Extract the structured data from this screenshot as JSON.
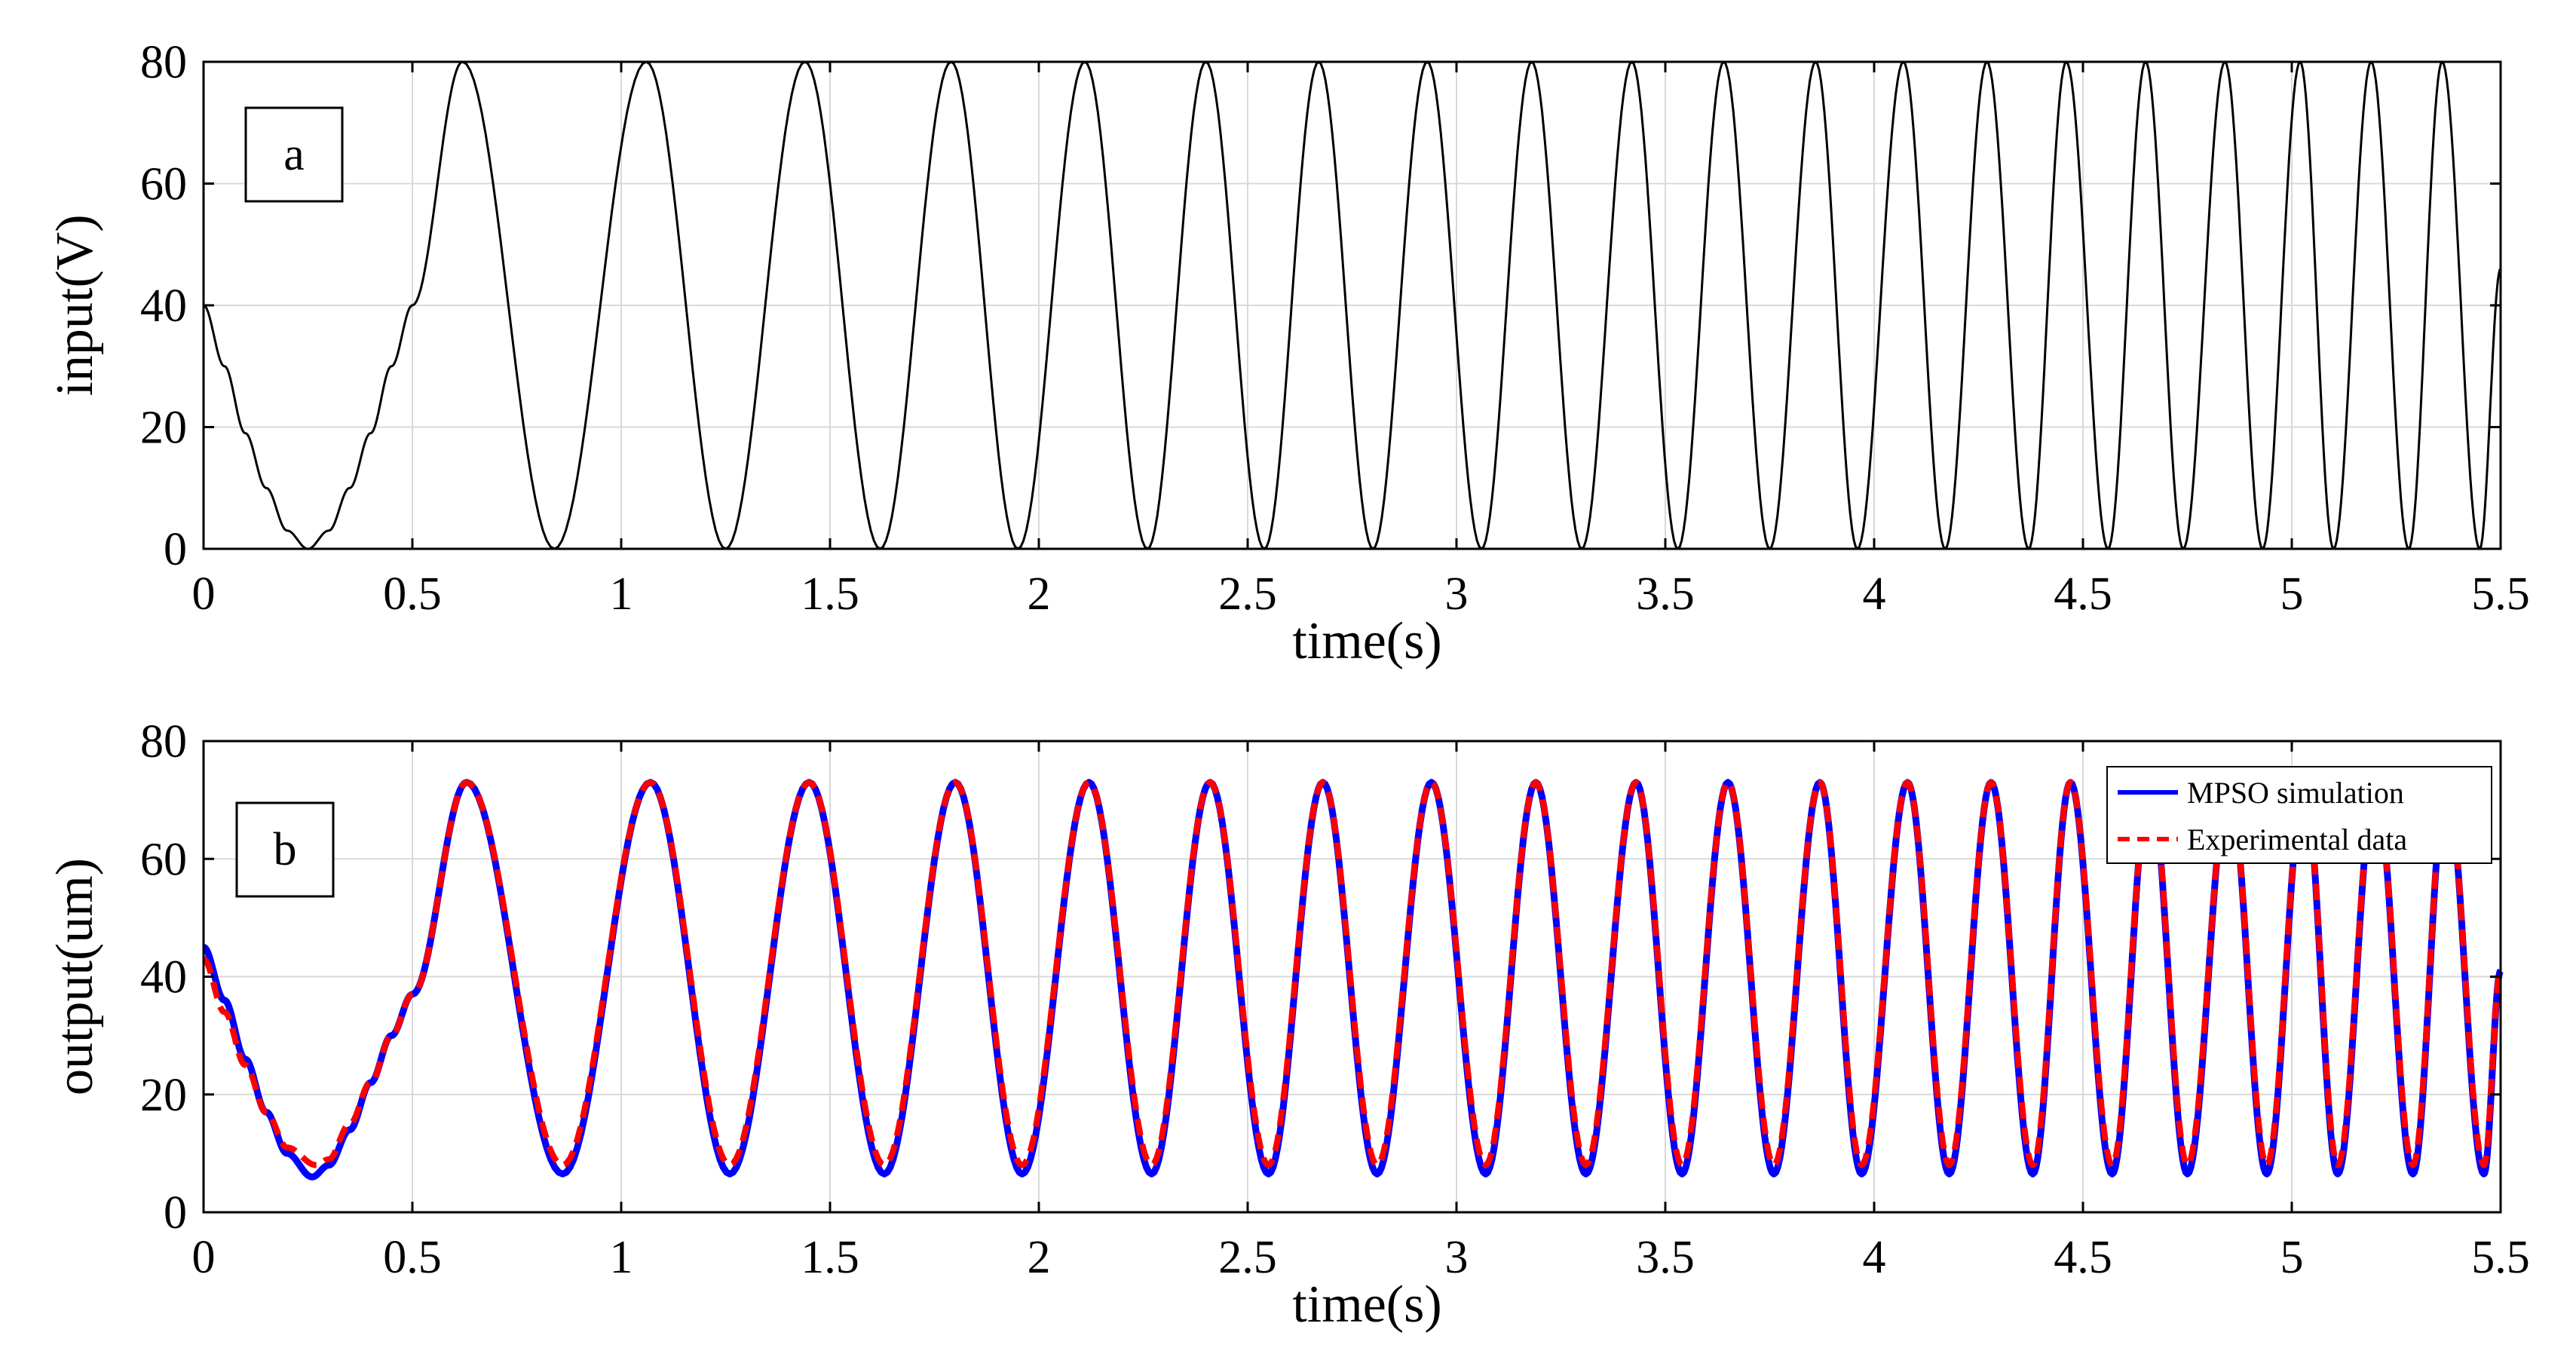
{
  "colors": {
    "input_line": "#000000",
    "simulation": "#0000ff",
    "experimental": "#ff0000",
    "grid": "#d9d9d9",
    "axes": "#000000"
  },
  "chart_data": [
    {
      "type": "line",
      "panel_label": "a",
      "xlabel": "time(s)",
      "ylabel": "input(V)",
      "xlim": [
        0,
        5.5
      ],
      "ylim": [
        0,
        80
      ],
      "xticks": [
        0,
        0.5,
        1,
        1.5,
        2,
        2.5,
        3,
        3.5,
        4,
        4.5,
        5,
        5.5
      ],
      "xtick_labels": [
        "0",
        "0.5",
        "1",
        "1.5",
        "2",
        "2.5",
        "3",
        "3.5",
        "4",
        "4.5",
        "5",
        "5.5"
      ],
      "yticks": [
        0,
        20,
        40,
        60,
        80
      ],
      "ytick_labels": [
        "0",
        "20",
        "40",
        "60",
        "80"
      ],
      "grid": true,
      "series": [
        {
          "color": "#000000",
          "style": "solid",
          "x": [
            0,
            0.05,
            0.1,
            0.15,
            0.2,
            0.25,
            0.3,
            0.35,
            0.4,
            0.45,
            0.5,
            0.62,
            0.84,
            1.06,
            1.25,
            1.44,
            1.62,
            1.79,
            1.95,
            2.11,
            2.26,
            2.4,
            2.54,
            2.67,
            2.8,
            2.93,
            3.06,
            3.18,
            3.3,
            3.42,
            3.53,
            3.64,
            3.75,
            3.86,
            3.96,
            4.07,
            4.17,
            4.27,
            4.37,
            4.46,
            4.56,
            4.65,
            4.74,
            4.84,
            4.93,
            5.02,
            5.1,
            5.19,
            5.28,
            5.36,
            5.45,
            5.5
          ],
          "y": [
            40,
            30,
            19,
            10,
            3,
            0,
            3,
            10,
            19,
            30,
            40,
            80,
            0,
            80,
            0,
            80,
            0,
            80,
            0,
            80,
            0,
            80,
            0,
            80,
            0,
            80,
            0,
            80,
            0,
            80,
            0,
            80,
            0,
            80,
            0,
            80,
            0,
            80,
            0,
            80,
            0,
            80,
            0,
            80,
            0,
            80,
            0,
            80,
            0,
            80,
            0,
            46
          ]
        }
      ]
    },
    {
      "type": "line",
      "panel_label": "b",
      "xlabel": "time(s)",
      "ylabel": "output(um)",
      "xlim": [
        0,
        5.5
      ],
      "ylim": [
        0,
        80
      ],
      "xticks": [
        0,
        0.5,
        1,
        1.5,
        2,
        2.5,
        3,
        3.5,
        4,
        4.5,
        5,
        5.5
      ],
      "xtick_labels": [
        "0",
        "0.5",
        "1",
        "1.5",
        "2",
        "2.5",
        "3",
        "3.5",
        "4",
        "4.5",
        "5",
        "5.5"
      ],
      "yticks": [
        0,
        20,
        40,
        60,
        80
      ],
      "ytick_labels": [
        "0",
        "20",
        "40",
        "60",
        "80"
      ],
      "grid": true,
      "legend_position": "top-right",
      "series": [
        {
          "name": "MPSO simulation",
          "color": "#0000ff",
          "style": "solid",
          "x": [
            0,
            0.05,
            0.1,
            0.15,
            0.2,
            0.26,
            0.3,
            0.35,
            0.4,
            0.45,
            0.5,
            0.63,
            0.86,
            1.07,
            1.26,
            1.45,
            1.63,
            1.8,
            1.96,
            2.12,
            2.27,
            2.41,
            2.55,
            2.68,
            2.81,
            2.94,
            3.07,
            3.19,
            3.31,
            3.43,
            3.54,
            3.65,
            3.76,
            3.87,
            3.97,
            4.08,
            4.18,
            4.28,
            4.38,
            4.47,
            4.57,
            4.66,
            4.75,
            4.85,
            4.94,
            5.03,
            5.11,
            5.2,
            5.29,
            5.37,
            5.46,
            5.5
          ],
          "y": [
            45,
            36,
            26,
            17,
            10,
            6,
            8,
            14,
            22,
            30,
            37,
            73,
            6.5,
            73,
            6.5,
            73,
            6.5,
            73,
            6.5,
            73,
            6.5,
            73,
            6.5,
            73,
            6.5,
            73,
            6.5,
            73,
            6.5,
            73,
            6.5,
            73,
            6.5,
            73,
            6.5,
            73,
            6.5,
            73,
            6.5,
            73,
            6.5,
            73,
            6.5,
            73,
            6.5,
            73,
            6.5,
            73,
            6.5,
            73,
            6.5,
            41
          ]
        },
        {
          "name": "Experimental data",
          "color": "#ff0000",
          "style": "dashed",
          "x": [
            0,
            0.05,
            0.1,
            0.15,
            0.2,
            0.27,
            0.3,
            0.35,
            0.4,
            0.45,
            0.5,
            0.63,
            0.86,
            1.07,
            1.26,
            1.45,
            1.63,
            1.8,
            1.96,
            2.12,
            2.27,
            2.41,
            2.55,
            2.68,
            2.81,
            2.94,
            3.07,
            3.19,
            3.31,
            3.43,
            3.54,
            3.65,
            3.76,
            3.87,
            3.97,
            4.08,
            4.18,
            4.28,
            4.38,
            4.47,
            4.57,
            4.66,
            4.75,
            4.85,
            4.94,
            5.03,
            5.11,
            5.2,
            5.29,
            5.37,
            5.46,
            5.5
          ],
          "y": [
            43,
            34,
            25,
            17,
            11,
            8,
            9,
            15,
            22,
            30,
            37,
            73,
            8,
            73,
            8,
            73,
            8,
            73,
            8,
            73,
            8,
            73,
            8,
            73,
            8,
            73,
            8,
            73,
            8,
            73,
            8,
            73,
            8,
            73,
            8,
            73,
            8,
            73,
            8,
            73,
            8,
            73,
            8,
            73,
            8,
            73,
            8,
            73,
            8,
            73,
            8,
            41
          ]
        }
      ]
    }
  ]
}
